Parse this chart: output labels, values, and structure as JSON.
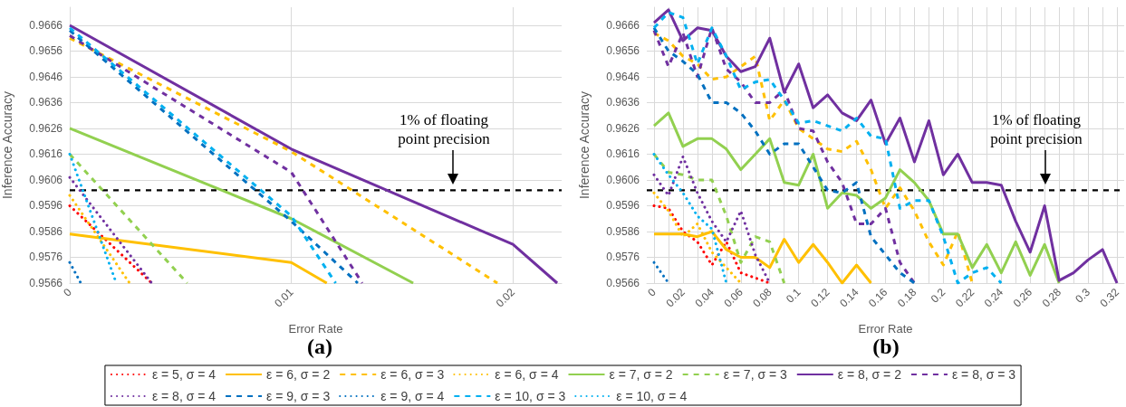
{
  "chart_data": [
    {
      "type": "line",
      "title": "(a)",
      "xlabel": "Error Rate",
      "ylabel": "Inference Accuracy",
      "xlim": [
        0,
        0.0222
      ],
      "xticks": [
        0,
        0.01,
        0.02
      ],
      "ylim": [
        0.9566,
        0.9673
      ],
      "yticks": [
        0.9566,
        0.9576,
        0.9586,
        0.9596,
        0.9606,
        0.9616,
        0.9626,
        0.9636,
        0.9646,
        0.9656,
        0.9666
      ],
      "grid": true,
      "legend": "bottom",
      "marker": "none",
      "ref_lines": [
        {
          "axis": "y",
          "value": 0.9602,
          "color": "#000000",
          "line_style": "dashed"
        }
      ],
      "annotations": [
        "1% of floating point precision"
      ],
      "series": [
        {
          "name": "ε = 5, σ = 4",
          "color": "#ff0000",
          "line_style": "dotted",
          "x": [
            0,
            0.0037
          ],
          "values": [
            0.9596,
            0.9566
          ]
        },
        {
          "name": "ε = 6, σ = 2",
          "color": "#ffc000",
          "line_style": "solid",
          "x": [
            0,
            0.01,
            0.0116
          ],
          "values": [
            0.9585,
            0.9574,
            0.9566
          ]
        },
        {
          "name": "ε = 6, σ = 3",
          "color": "#ffc000",
          "line_style": "dashed",
          "x": [
            0,
            0.01,
            0.0193
          ],
          "values": [
            0.9661,
            0.9617,
            0.9566
          ]
        },
        {
          "name": "ε = 6, σ = 4",
          "color": "#ffc000",
          "line_style": "dotted",
          "x": [
            0,
            0.0027
          ],
          "values": [
            0.96,
            0.9566
          ]
        },
        {
          "name": "ε = 7, σ = 2",
          "color": "#92d050",
          "line_style": "solid",
          "x": [
            0,
            0.01,
            0.0155
          ],
          "values": [
            0.9626,
            0.9591,
            0.9566
          ]
        },
        {
          "name": "ε = 7, σ = 3",
          "color": "#92d050",
          "line_style": "dashed",
          "x": [
            0,
            0.0053
          ],
          "values": [
            0.9616,
            0.9566
          ]
        },
        {
          "name": "ε = 8, σ = 2",
          "color": "#7030a0",
          "line_style": "solid",
          "x": [
            0,
            0.01,
            0.02,
            0.022
          ],
          "values": [
            0.9666,
            0.9618,
            0.9581,
            0.9566
          ]
        },
        {
          "name": "ε = 8, σ = 3",
          "color": "#7030a0",
          "line_style": "dashed",
          "x": [
            0,
            0.01,
            0.0132
          ],
          "values": [
            0.9662,
            0.9609,
            0.9566
          ]
        },
        {
          "name": "ε = 8, σ = 4",
          "color": "#7030a0",
          "line_style": "dotted",
          "x": [
            0,
            0.0037
          ],
          "values": [
            0.9607,
            0.9566
          ]
        },
        {
          "name": "ε = 9, σ = 3",
          "color": "#0070c0",
          "line_style": "dashed",
          "x": [
            0,
            0.01,
            0.013
          ],
          "values": [
            0.9664,
            0.959,
            0.9566
          ]
        },
        {
          "name": "ε = 9, σ = 4",
          "color": "#0070c0",
          "line_style": "dotted",
          "x": [
            0,
            0.0005
          ],
          "values": [
            0.9574,
            0.9566
          ]
        },
        {
          "name": "ε = 10, σ = 3",
          "color": "#00b0f0",
          "line_style": "dashed",
          "x": [
            0,
            0.01,
            0.012
          ],
          "values": [
            0.9665,
            0.9592,
            0.9566
          ]
        },
        {
          "name": "ε = 10, σ = 4",
          "color": "#00b0f0",
          "line_style": "dotted",
          "x": [
            0,
            0.0021
          ],
          "values": [
            0.9616,
            0.9566
          ]
        }
      ]
    },
    {
      "type": "line",
      "title": "(b)",
      "xlabel": "Error Rate",
      "ylabel": "Inference Accuracy",
      "xlim": [
        -0.005,
        0.325
      ],
      "xticks": [
        0,
        {
          "value": 0.01,
          "label": null
        },
        0.02,
        {
          "value": 0.03,
          "label": null
        },
        0.04,
        {
          "value": 0.05,
          "label": null
        },
        0.06,
        {
          "value": 0.07,
          "label": null
        },
        0.08,
        {
          "value": 0.09,
          "label": null
        },
        0.1,
        {
          "value": 0.11,
          "label": null
        },
        0.12,
        {
          "value": 0.13,
          "label": null
        },
        0.14,
        {
          "value": 0.15,
          "label": null
        },
        0.16,
        {
          "value": 0.17,
          "label": null
        },
        0.18,
        {
          "value": 0.19,
          "label": null
        },
        0.2,
        {
          "value": 0.21,
          "label": null
        },
        0.22,
        {
          "value": 0.23,
          "label": null
        },
        0.24,
        {
          "value": 0.25,
          "label": null
        },
        0.26,
        {
          "value": 0.27,
          "label": null
        },
        0.28,
        {
          "value": 0.29,
          "label": null
        },
        0.3,
        {
          "value": 0.31,
          "label": null
        },
        0.32
      ],
      "ylim": [
        0.9566,
        0.9673
      ],
      "yticks": [
        0.9566,
        0.9576,
        0.9586,
        0.9596,
        0.9606,
        0.9616,
        0.9626,
        0.9636,
        0.9646,
        0.9656,
        0.9666
      ],
      "grid": true,
      "marker": "none",
      "ref_lines": [
        {
          "axis": "y",
          "value": 0.9602,
          "color": "#000000",
          "line_style": "dashed"
        }
      ],
      "annotations": [
        "1% of floating point precision"
      ],
      "series": [
        {
          "color": "#ff0000",
          "line_style": "dotted",
          "x": [
            0,
            0.01,
            0.02,
            0.03,
            0.04,
            0.05,
            0.06,
            0.07,
            0.08
          ],
          "values": [
            0.9596,
            0.9595,
            0.9586,
            0.9582,
            0.9573,
            0.9582,
            0.957,
            0.9568,
            0.9566
          ]
        },
        {
          "color": "#ffc000",
          "line_style": "solid",
          "x": [
            0,
            0.01,
            0.02,
            0.03,
            0.04,
            0.05,
            0.06,
            0.07,
            0.08,
            0.09,
            0.1,
            0.11,
            0.12,
            0.13,
            0.14,
            0.15
          ],
          "values": [
            0.9585,
            0.9585,
            0.9585,
            0.9584,
            0.9586,
            0.9579,
            0.9576,
            0.9576,
            0.9572,
            0.9583,
            0.9574,
            0.9581,
            0.9574,
            0.9566,
            0.9573,
            0.9566
          ]
        },
        {
          "color": "#ffc000",
          "line_style": "dashed",
          "x": [
            0,
            0.01,
            0.02,
            0.03,
            0.04,
            0.05,
            0.06,
            0.07,
            0.08,
            0.09,
            0.1,
            0.11,
            0.12,
            0.13,
            0.14,
            0.15,
            0.16,
            0.17,
            0.18,
            0.19,
            0.2,
            0.21,
            0.22
          ],
          "values": [
            0.9663,
            0.966,
            0.9654,
            0.9651,
            0.9645,
            0.9646,
            0.965,
            0.9654,
            0.9629,
            0.9637,
            0.9626,
            0.9622,
            0.9618,
            0.9617,
            0.9621,
            0.961,
            0.9595,
            0.9603,
            0.9594,
            0.9582,
            0.9573,
            0.9586,
            0.9566
          ]
        },
        {
          "color": "#ffc000",
          "line_style": "dotted",
          "x": [
            0,
            0.01,
            0.02,
            0.03,
            0.04,
            0.05,
            0.06
          ],
          "values": [
            0.9601,
            0.9594,
            0.9584,
            0.9589,
            0.9578,
            0.9572,
            0.9566
          ]
        },
        {
          "color": "#92d050",
          "line_style": "solid",
          "x": [
            0,
            0.01,
            0.02,
            0.03,
            0.04,
            0.05,
            0.06,
            0.07,
            0.08,
            0.09,
            0.1,
            0.11,
            0.12,
            0.13,
            0.14,
            0.15,
            0.16,
            0.17,
            0.18,
            0.19,
            0.2,
            0.21,
            0.22,
            0.23,
            0.24,
            0.25,
            0.26,
            0.27,
            0.28
          ],
          "values": [
            0.9627,
            0.9632,
            0.9619,
            0.9622,
            0.9622,
            0.9618,
            0.961,
            0.9616,
            0.9622,
            0.9605,
            0.9604,
            0.9616,
            0.9595,
            0.9601,
            0.96,
            0.9595,
            0.9599,
            0.961,
            0.9605,
            0.9598,
            0.9585,
            0.9585,
            0.9572,
            0.9581,
            0.957,
            0.9582,
            0.9569,
            0.9581,
            0.9566
          ]
        },
        {
          "color": "#92d050",
          "line_style": "dashed",
          "x": [
            0,
            0.01,
            0.02,
            0.03,
            0.04,
            0.05,
            0.06,
            0.07,
            0.08,
            0.09
          ],
          "values": [
            0.9616,
            0.9609,
            0.9608,
            0.9606,
            0.9606,
            0.9592,
            0.9574,
            0.9584,
            0.9582,
            0.9566
          ]
        },
        {
          "color": "#7030a0",
          "line_style": "solid",
          "x": [
            0,
            0.01,
            0.02,
            0.03,
            0.04,
            0.05,
            0.06,
            0.07,
            0.08,
            0.09,
            0.1,
            0.11,
            0.12,
            0.13,
            0.14,
            0.15,
            0.16,
            0.17,
            0.18,
            0.19,
            0.2,
            0.21,
            0.22,
            0.23,
            0.24,
            0.25,
            0.26,
            0.27,
            0.28,
            0.29,
            0.3,
            0.31,
            0.32
          ],
          "values": [
            0.9667,
            0.9672,
            0.966,
            0.9665,
            0.9664,
            0.9654,
            0.9648,
            0.965,
            0.9661,
            0.964,
            0.9651,
            0.9634,
            0.9639,
            0.9632,
            0.9629,
            0.9637,
            0.962,
            0.963,
            0.9613,
            0.9629,
            0.9608,
            0.9616,
            0.9605,
            0.9605,
            0.9604,
            0.959,
            0.9578,
            0.9596,
            0.9567,
            0.957,
            0.9575,
            0.9579,
            0.9566
          ]
        },
        {
          "color": "#7030a0",
          "line_style": "dashed",
          "x": [
            0,
            0.01,
            0.02,
            0.03,
            0.04,
            0.05,
            0.06,
            0.07,
            0.08,
            0.09,
            0.1,
            0.11,
            0.12,
            0.13,
            0.14,
            0.15,
            0.16,
            0.17,
            0.18
          ],
          "values": [
            0.9664,
            0.965,
            0.9663,
            0.9646,
            0.9665,
            0.9649,
            0.9644,
            0.9636,
            0.9636,
            0.9641,
            0.9626,
            0.9625,
            0.9613,
            0.9605,
            0.9589,
            0.9589,
            0.9595,
            0.9574,
            0.9566
          ]
        },
        {
          "color": "#7030a0",
          "line_style": "dotted",
          "x": [
            0,
            0.01,
            0.02,
            0.03,
            0.04,
            0.05,
            0.06,
            0.07,
            0.08
          ],
          "values": [
            0.9608,
            0.96,
            0.9615,
            0.9601,
            0.959,
            0.9582,
            0.9594,
            0.9577,
            0.9566
          ]
        },
        {
          "color": "#0070c0",
          "line_style": "dashed",
          "x": [
            0,
            0.01,
            0.02,
            0.03,
            0.04,
            0.05,
            0.06,
            0.07,
            0.08,
            0.09,
            0.1,
            0.11,
            0.12,
            0.13,
            0.14,
            0.15,
            0.16,
            0.17,
            0.18
          ],
          "values": [
            0.9665,
            0.9656,
            0.9652,
            0.9647,
            0.9636,
            0.9636,
            0.9632,
            0.9625,
            0.9616,
            0.962,
            0.962,
            0.9611,
            0.9602,
            0.9601,
            0.9605,
            0.9584,
            0.9577,
            0.957,
            0.9566
          ]
        },
        {
          "color": "#0070c0",
          "line_style": "dotted",
          "x": [
            0,
            0.01
          ],
          "values": [
            0.9574,
            0.9566
          ]
        },
        {
          "color": "#00b0f0",
          "line_style": "dashed",
          "x": [
            0,
            0.01,
            0.02,
            0.03,
            0.04,
            0.05,
            0.06,
            0.07,
            0.08,
            0.09,
            0.1,
            0.11,
            0.12,
            0.13,
            0.14,
            0.15,
            0.16,
            0.17,
            0.18,
            0.19,
            0.2,
            0.21,
            0.22,
            0.23,
            0.24
          ],
          "values": [
            0.9665,
            0.9671,
            0.9669,
            0.9651,
            0.9665,
            0.9654,
            0.9641,
            0.9644,
            0.9645,
            0.9637,
            0.9628,
            0.9629,
            0.9627,
            0.9625,
            0.963,
            0.9623,
            0.9622,
            0.9595,
            0.9598,
            0.9598,
            0.9584,
            0.9566,
            0.957,
            0.9572,
            0.9566
          ]
        },
        {
          "color": "#00b0f0",
          "line_style": "dotted",
          "x": [
            0,
            0.01,
            0.02,
            0.03,
            0.04,
            0.05
          ],
          "values": [
            0.9616,
            0.9608,
            0.9601,
            0.9592,
            0.9587,
            0.9566
          ]
        }
      ]
    }
  ]
}
